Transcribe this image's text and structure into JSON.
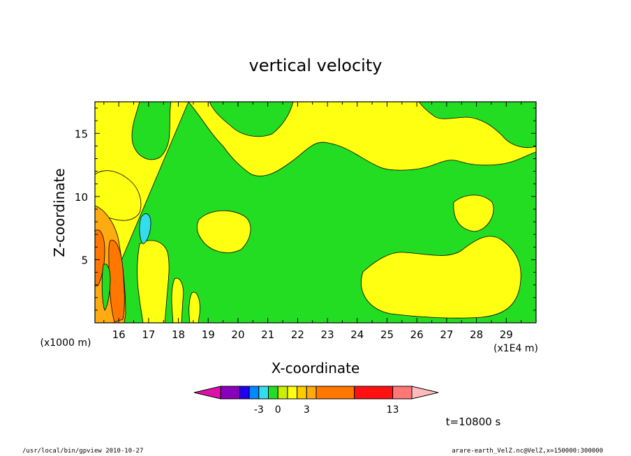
{
  "chart_data": {
    "type": "heatmap",
    "title": "vertical velocity",
    "xlabel": "X-coordinate",
    "ylabel": "Z-coordinate",
    "x_unit_left": "(x1000 m)",
    "x_unit_right": "(x1E4 m)",
    "x_ticks": [
      "16",
      "17",
      "18",
      "19",
      "20",
      "21",
      "22",
      "23",
      "24",
      "25",
      "26",
      "27",
      "28",
      "29"
    ],
    "y_ticks": [
      "5",
      "10",
      "15"
    ],
    "xlim": [
      15.2,
      30.0
    ],
    "ylim": [
      0,
      17.5
    ],
    "time_label": "t=10800 s",
    "colorbar": {
      "colors": [
        "#dd11aa",
        "#8800bb",
        "#2200ee",
        "#0088ff",
        "#33ddee",
        "#22dd22",
        "#ccee00",
        "#ffff11",
        "#ffcc00",
        "#ffaa11",
        "#ff7700",
        "#ff1111",
        "#ff7777",
        "#ffbbbb"
      ],
      "widths": [
        1,
        1,
        0.5,
        0.5,
        0.5,
        0.5,
        0.5,
        0.5,
        0.5,
        0.5,
        2,
        2,
        1,
        1
      ],
      "labels": [
        "-3",
        "0",
        "3",
        "13"
      ],
      "label_index": [
        4,
        6,
        9,
        12
      ]
    }
  },
  "footer": {
    "left": "/usr/local/bin/gpview  2010-10-27",
    "right": "arare-earth_VelZ.nc@VelZ,x=150000:300000"
  }
}
